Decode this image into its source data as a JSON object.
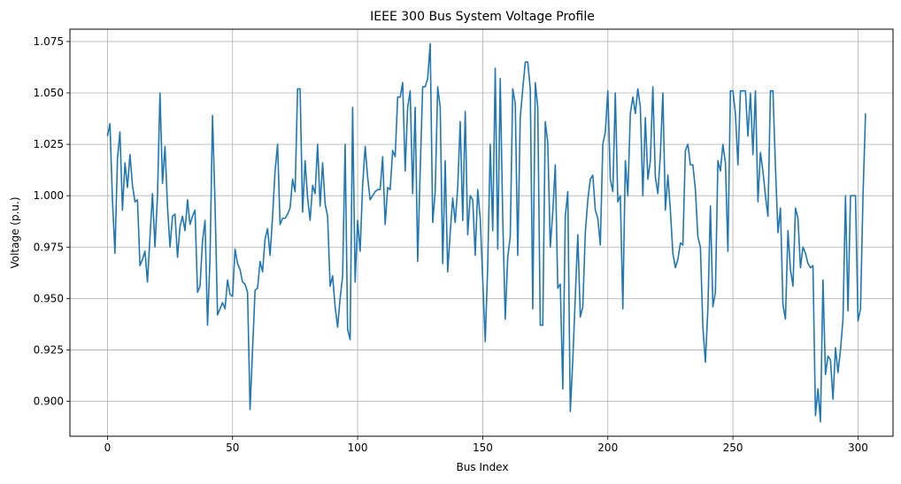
{
  "chart_data": {
    "type": "line",
    "title": "IEEE 300 Bus System Voltage Profile",
    "xlabel": "Bus Index",
    "ylabel": "Voltage (p.u.)",
    "xlim": [
      -15,
      314
    ],
    "ylim": [
      0.883,
      1.081
    ],
    "xticks": [
      0,
      50,
      100,
      150,
      200,
      250,
      300
    ],
    "yticks": [
      0.9,
      0.925,
      0.95,
      0.975,
      1.0,
      1.025,
      1.05,
      1.075
    ],
    "xtick_labels": [
      "0",
      "50",
      "100",
      "150",
      "200",
      "250",
      "300"
    ],
    "ytick_labels": [
      "0.900",
      "0.925",
      "0.950",
      "0.975",
      "1.000",
      "1.025",
      "1.050",
      "1.075"
    ],
    "grid": true,
    "series": [
      {
        "color": "#1f77b4",
        "x_start": 0,
        "x_step": 1,
        "values": [
          1.029,
          1.035,
          0.998,
          0.972,
          1.018,
          1.031,
          0.993,
          1.016,
          1.004,
          1.02,
          1.005,
          0.997,
          0.998,
          0.966,
          0.969,
          0.973,
          0.958,
          0.98,
          1.001,
          0.975,
          1.0,
          1.05,
          1.006,
          1.024,
          0.995,
          0.975,
          0.99,
          0.991,
          0.97,
          0.985,
          0.99,
          0.983,
          0.998,
          0.986,
          0.99,
          0.993,
          0.953,
          0.956,
          0.978,
          0.988,
          0.937,
          0.97,
          1.039,
          0.996,
          0.942,
          0.945,
          0.948,
          0.945,
          0.959,
          0.952,
          0.951,
          0.974,
          0.967,
          0.964,
          0.958,
          0.957,
          0.953,
          0.896,
          0.925,
          0.954,
          0.955,
          0.968,
          0.963,
          0.979,
          0.984,
          0.971,
          0.99,
          1.012,
          1.025,
          0.986,
          0.989,
          0.989,
          0.991,
          0.994,
          1.008,
          1.002,
          1.052,
          1.052,
          0.992,
          1.017,
          0.999,
          0.988,
          1.005,
          1.001,
          1.025,
          0.995,
          1.016,
          0.996,
          0.99,
          0.956,
          0.961,
          0.946,
          0.936,
          0.95,
          0.961,
          1.025,
          0.935,
          0.93,
          1.043,
          0.958,
          0.988,
          0.973,
          1.005,
          1.024,
          1.009,
          0.998,
          1.0,
          1.002,
          1.003,
          1.003,
          1.019,
          0.986,
          1.004,
          1.003,
          1.022,
          1.019,
          1.048,
          1.048,
          1.055,
          1.012,
          1.043,
          1.051,
          1.001,
          1.043,
          0.968,
          1.012,
          1.053,
          1.053,
          1.057,
          1.074,
          0.987,
          1.002,
          1.053,
          1.043,
          0.967,
          1.017,
          0.963,
          0.982,
          0.999,
          0.987,
          1.004,
          1.036,
          0.988,
          1.041,
          0.981,
          1.0,
          0.998,
          0.971,
          1.003,
          0.989,
          0.959,
          0.929,
          0.966,
          1.025,
          0.983,
          1.062,
          0.974,
          1.057,
          0.989,
          0.94,
          0.97,
          0.98,
          1.052,
          1.045,
          0.971,
          1.038,
          1.052,
          1.065,
          1.065,
          1.052,
          0.945,
          1.055,
          1.043,
          0.937,
          0.937,
          1.036,
          1.026,
          0.975,
          0.992,
          1.015,
          0.955,
          0.957,
          0.906,
          0.99,
          1.002,
          0.895,
          0.92,
          0.951,
          0.981,
          0.941,
          0.946,
          0.982,
          0.998,
          1.008,
          1.01,
          0.993,
          0.989,
          0.976,
          1.025,
          1.031,
          1.051,
          1.008,
          1.002,
          1.05,
          0.997,
          1.0,
          0.945,
          1.017,
          1.0,
          1.04,
          1.048,
          1.04,
          1.052,
          1.043,
          1.0,
          1.038,
          1.008,
          1.017,
          1.053,
          1.009,
          1.001,
          1.02,
          1.05,
          0.993,
          1.01,
          0.993,
          0.972,
          0.965,
          0.969,
          0.977,
          0.976,
          1.022,
          1.025,
          1.015,
          1.015,
          1.003,
          0.98,
          0.975,
          0.936,
          0.919,
          0.945,
          0.995,
          0.946,
          0.953,
          1.017,
          1.012,
          1.025,
          1.016,
          0.973,
          1.051,
          1.051,
          1.04,
          1.015,
          1.051,
          1.051,
          1.051,
          1.029,
          1.05,
          1.02,
          1.051,
          0.997,
          1.021,
          1.012,
          1.0,
          0.99,
          1.051,
          1.051,
          1.014,
          0.982,
          0.994,
          0.947,
          0.94,
          0.983,
          0.964,
          0.956,
          0.994,
          0.989,
          0.965,
          0.975,
          0.972,
          0.967,
          0.965,
          0.966,
          0.893,
          0.906,
          0.89,
          0.959,
          0.913,
          0.922,
          0.92,
          0.901,
          0.926,
          0.914,
          0.925,
          0.94,
          1.0,
          0.944,
          1.0,
          1.0,
          1.0,
          0.939,
          0.945,
          1.0,
          1.04
        ]
      }
    ]
  }
}
